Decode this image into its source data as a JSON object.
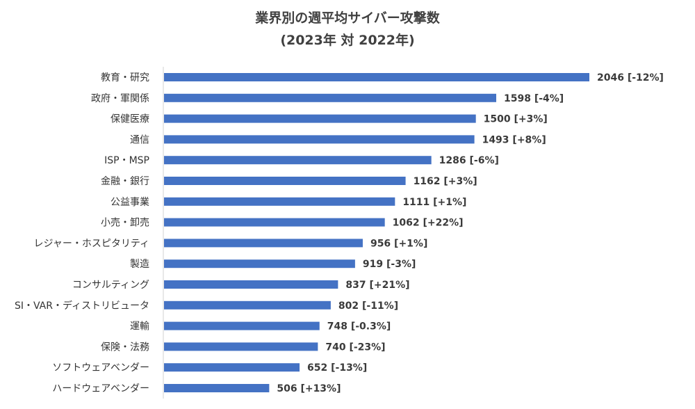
{
  "chart_data": {
    "type": "bar",
    "orientation": "horizontal",
    "title": "業界別の週平均サイバー攻撃数",
    "subtitle": "(2023年 対 2022年)",
    "categories": [
      "教育・研究",
      "政府・軍関係",
      "保健医療",
      "通信",
      "ISP・MSP",
      "金融・銀行",
      "公益事業",
      "小売・卸売",
      "レジャー・ホスピタリティ",
      "製造",
      "コンサルティング",
      "SI・VAR・ディストリビュータ",
      "運輸",
      "保険・法務",
      "ソフトウェアベンダー",
      "ハードウェアベンダー"
    ],
    "values": [
      2046,
      1598,
      1500,
      1493,
      1286,
      1162,
      1111,
      1062,
      956,
      919,
      837,
      802,
      748,
      740,
      652,
      506
    ],
    "data_labels": [
      "2046 [-12%]",
      "1598 [-4%]",
      "1500 [+3%]",
      "1493 [+8%]",
      "1286 [-6%]",
      "1162 [+3%]",
      "1111 [+1%]",
      "1062 [+22%]",
      "956 [+1%]",
      "919 [-3%]",
      "837 [+21%]",
      "802 [-11%]",
      "748 [-0.3%]",
      "740 [-23%]",
      "652 [-13%]",
      "506 [+13%]"
    ],
    "xlim": [
      0,
      2046
    ],
    "grid": false,
    "bar_color": "#4472C4"
  }
}
